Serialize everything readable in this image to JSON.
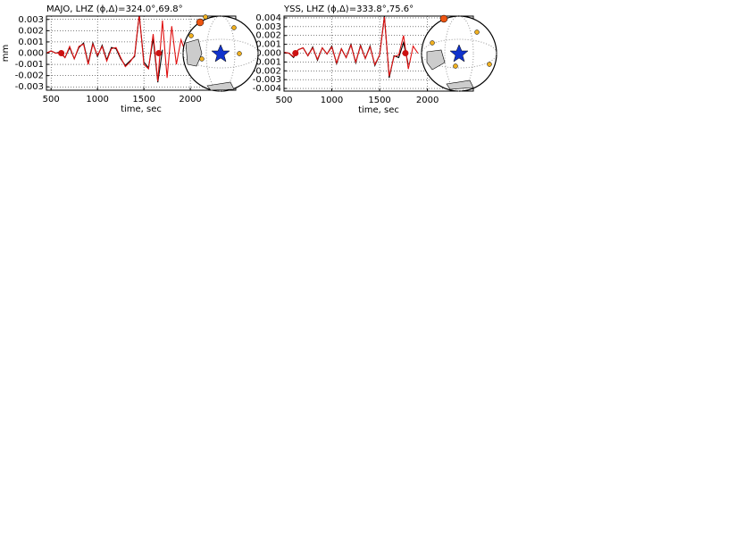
{
  "chart_data": [
    {
      "type": "line",
      "title": "MAJO, LHZ (ϕ,Δ)=324.0°,69.8°",
      "y_label": "mm",
      "x_label": "time, sec",
      "xlim": [
        450,
        2490
      ],
      "xticks": [
        500,
        1000,
        1500,
        2000
      ],
      "ylim": [
        -0.0033,
        0.0033
      ],
      "yticks": [
        -0.003,
        -0.002,
        -0.001,
        {
          "value": 0,
          "label": "0.000"
        },
        0.001,
        0.002,
        0.003
      ],
      "grid": true,
      "series": [
        {
          "color": "#000000",
          "x": [
            450,
            500,
            550,
            600,
            650,
            700,
            750,
            800,
            850,
            900,
            950,
            1000,
            1050,
            1100,
            1150,
            1200,
            1250,
            1300,
            1350,
            1400,
            1450,
            1500,
            1550,
            1600,
            1650,
            1700
          ],
          "values": [
            0,
            0.0002,
            0,
            0.0001,
            -0.0004,
            0.0005,
            -0.0005,
            0.0005,
            0.0009,
            -0.0009,
            0.0009,
            -0.0003,
            0.0007,
            -0.0006,
            0.0005,
            0.0004,
            -0.0005,
            -0.0011,
            -0.0007,
            -0.0003,
            0.0034,
            -0.0008,
            -0.0013,
            0.0013,
            -0.0026,
            0.0003
          ]
        },
        {
          "color": "#e01010",
          "x": [
            450,
            500,
            550,
            600,
            650,
            700,
            750,
            800,
            850,
            900,
            950,
            1000,
            1050,
            1100,
            1150,
            1200,
            1250,
            1300,
            1350,
            1400,
            1450,
            1500,
            1550,
            1600,
            1650,
            1700,
            1750,
            1800,
            1850,
            1900,
            1950
          ],
          "values": [
            0,
            0.0002,
            0,
            0,
            -0.0004,
            0.0006,
            -0.0005,
            0.0006,
            0.0008,
            -0.001,
            0.0008,
            -0.0002,
            0.0006,
            -0.0007,
            0.0004,
            0.0005,
            -0.0004,
            -0.0012,
            -0.0008,
            -0.0002,
            0.0035,
            -0.001,
            -0.0014,
            0.0017,
            -0.0025,
            0.0029,
            -0.0022,
            0.0024,
            -0.001,
            0.0012,
            0
          ]
        }
      ],
      "points": {
        "color": "#cc1111",
        "x": [
          610,
          1660
        ],
        "values": [
          0,
          0
        ]
      }
    },
    {
      "type": "line",
      "title": "YSS, LHZ (ϕ,Δ)=333.8°,75.6°",
      "x_label": "time, sec",
      "xlim": [
        500,
        2480
      ],
      "xticks": [
        500,
        1000,
        1500,
        2000
      ],
      "ylim": [
        -0.0043,
        0.0042
      ],
      "yticks": [
        -0.004,
        -0.003,
        -0.002,
        -0.001,
        {
          "value": 0,
          "label": "0.000"
        },
        0.001,
        0.002,
        0.003,
        0.004
      ],
      "grid": true,
      "series": [
        {
          "color": "#000000",
          "x": [
            500,
            550,
            600,
            650,
            700,
            750,
            800,
            850,
            900,
            950,
            1000,
            1050,
            1100,
            1150,
            1200,
            1250,
            1300,
            1350,
            1400,
            1450,
            1500,
            1550,
            1600,
            1650,
            1700,
            1750,
            1800
          ],
          "values": [
            0.0001,
            0,
            -0.0005,
            0.0004,
            0.0006,
            -0.0003,
            0.0007,
            -0.0008,
            0.0006,
            -0.0001,
            0.0008,
            -0.0012,
            0.0005,
            -0.0005,
            0.001,
            -0.0011,
            0.0009,
            -0.0006,
            0.0008,
            -0.0014,
            -0.0002,
            0.0042,
            -0.0028,
            -0.0003,
            -0.0005,
            0.0012,
            -0.0013
          ]
        },
        {
          "color": "#e01010",
          "x": [
            500,
            550,
            600,
            650,
            700,
            750,
            800,
            850,
            900,
            950,
            1000,
            1050,
            1100,
            1150,
            1200,
            1250,
            1300,
            1350,
            1400,
            1450,
            1500,
            1550,
            1600,
            1650,
            1700,
            1750,
            1800,
            1850,
            1900
          ],
          "values": [
            0.0001,
            0,
            -0.0004,
            0.0004,
            0.0006,
            -0.0003,
            0.0006,
            -0.0007,
            0.0006,
            -0.0001,
            0.0007,
            -0.0011,
            0.0005,
            -0.0005,
            0.0009,
            -0.001,
            0.0008,
            -0.0006,
            0.0007,
            -0.0013,
            -0.0002,
            0.0041,
            -0.0026,
            -0.0004,
            -0.0002,
            0.002,
            -0.0018,
            0.0008,
            0
          ]
        }
      ],
      "points": {
        "color": "#cc1111",
        "x": [
          620,
          1770
        ],
        "values": [
          0,
          0
        ]
      }
    }
  ]
}
